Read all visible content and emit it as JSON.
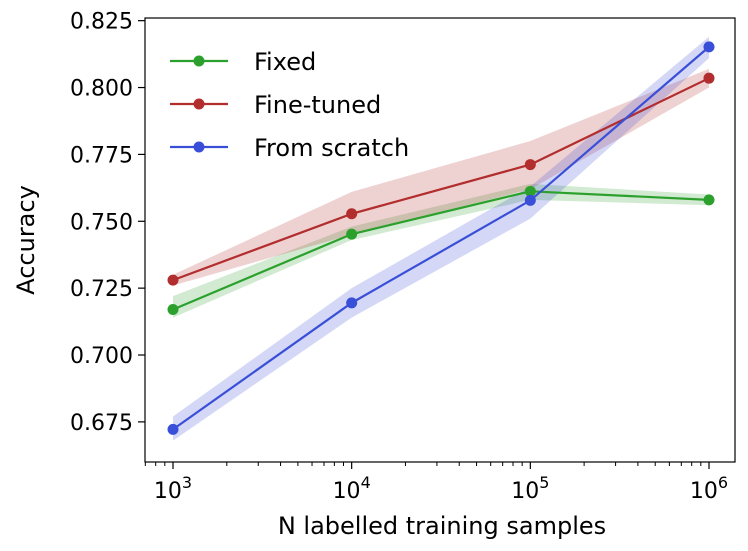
{
  "chart_data": {
    "type": "line",
    "title": "",
    "xlabel": "N labelled training samples",
    "ylabel": "Accuracy",
    "x_scale": "log",
    "x": [
      1000,
      10000,
      100000,
      1000000
    ],
    "x_tick_labels": [
      {
        "base": "10",
        "exp": "3"
      },
      {
        "base": "10",
        "exp": "4"
      },
      {
        "base": "10",
        "exp": "5"
      },
      {
        "base": "10",
        "exp": "6"
      }
    ],
    "ylim": [
      0.66,
      0.826
    ],
    "y_ticks": [
      0.675,
      0.7,
      0.725,
      0.75,
      0.775,
      0.8,
      0.825
    ],
    "y_tick_labels": [
      "0.675",
      "0.700",
      "0.725",
      "0.750",
      "0.775",
      "0.800",
      "0.825"
    ],
    "grid": false,
    "legend_position": "top-left",
    "series": [
      {
        "name": "Fixed",
        "color": "#2ca02c",
        "values": [
          0.717,
          0.7452,
          0.7612,
          0.758
        ],
        "band_lower": [
          0.714,
          0.743,
          0.758,
          0.756
        ],
        "band_upper": [
          0.722,
          0.748,
          0.764,
          0.76
        ]
      },
      {
        "name": "Fine-tuned",
        "color": "#b22d2d",
        "values": [
          0.728,
          0.7528,
          0.7712,
          0.8035
        ],
        "band_lower": [
          0.726,
          0.745,
          0.762,
          0.8
        ],
        "band_upper": [
          0.73,
          0.761,
          0.78,
          0.807
        ]
      },
      {
        "name": "From scratch",
        "color": "#3a4fd8",
        "values": [
          0.6722,
          0.7195,
          0.7578,
          0.8152
        ],
        "band_lower": [
          0.668,
          0.714,
          0.751,
          0.811
        ],
        "band_upper": [
          0.677,
          0.725,
          0.763,
          0.819
        ]
      }
    ]
  }
}
